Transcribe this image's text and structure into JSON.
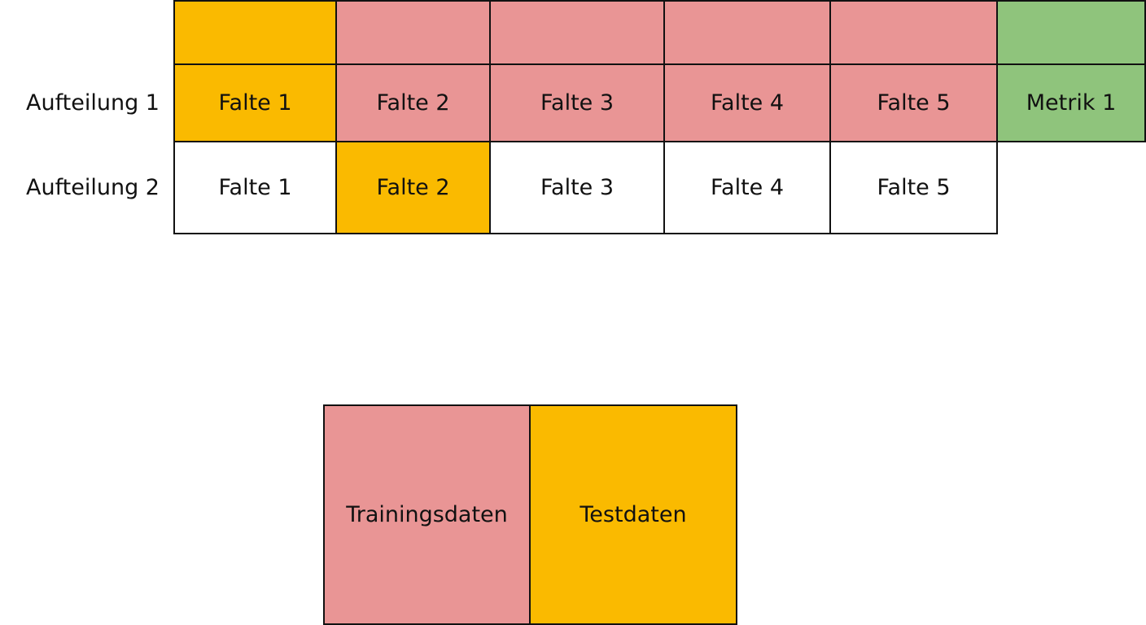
{
  "colors": {
    "train": "#E99595",
    "test": "#FABA00",
    "metric": "#8FC47C",
    "empty": "#FFFFFF",
    "border": "#111111"
  },
  "rows": [
    {
      "label": "",
      "cells": [
        {
          "text": "",
          "role": "test"
        },
        {
          "text": "",
          "role": "train"
        },
        {
          "text": "",
          "role": "train"
        },
        {
          "text": "",
          "role": "train"
        },
        {
          "text": "",
          "role": "train"
        },
        {
          "text": "",
          "role": "metric"
        }
      ]
    },
    {
      "label": "Aufteilung 1",
      "cells": [
        {
          "text": "Falte 1",
          "role": "test"
        },
        {
          "text": "Falte 2",
          "role": "train"
        },
        {
          "text": "Falte 3",
          "role": "train"
        },
        {
          "text": "Falte 4",
          "role": "train"
        },
        {
          "text": "Falte 5",
          "role": "train"
        },
        {
          "text": "Metrik 1",
          "role": "metric"
        }
      ]
    },
    {
      "label": "Aufteilung 2",
      "cells": [
        {
          "text": "Falte 1",
          "role": "empty"
        },
        {
          "text": "Falte 2",
          "role": "test"
        },
        {
          "text": "Falte 3",
          "role": "empty"
        },
        {
          "text": "Falte 4",
          "role": "empty"
        },
        {
          "text": "Falte 5",
          "role": "empty"
        }
      ]
    }
  ],
  "legend": [
    {
      "text": "Trainingsdaten",
      "role": "train"
    },
    {
      "text": "Testdaten",
      "role": "test"
    }
  ]
}
